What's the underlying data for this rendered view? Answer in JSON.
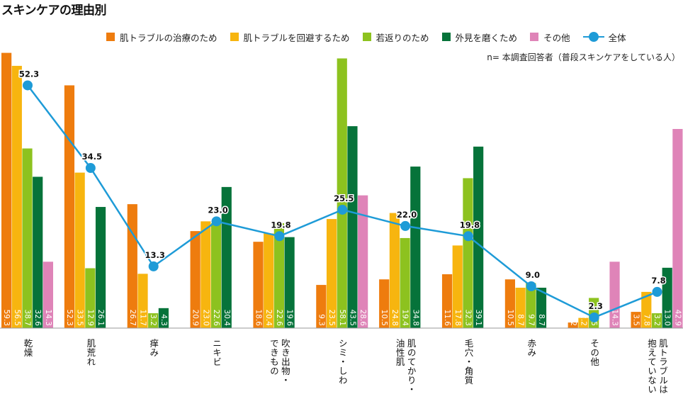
{
  "title": "スキンケアの理由別",
  "note": "n= 本調査回答者（普段スキンケアをしている人）",
  "chart_data": {
    "type": "bar",
    "title": "スキンケアの理由別",
    "categories": [
      [
        "乾燥"
      ],
      [
        "肌荒れ"
      ],
      [
        "痒み"
      ],
      [
        "ニキビ"
      ],
      [
        "吹き出物・",
        "できもの"
      ],
      [
        "シミ・しわ"
      ],
      [
        "肌のてかり・",
        "油性肌"
      ],
      [
        "毛穴・角質"
      ],
      [
        "赤み"
      ],
      [
        "その他"
      ],
      [
        "肌トラブルは",
        "抱えていない"
      ]
    ],
    "series": [
      {
        "name": "肌トラブルの治療のため",
        "color": "#ee7c0e",
        "values": [
          59.3,
          52.3,
          26.7,
          20.9,
          18.6,
          9.3,
          10.5,
          11.6,
          10.5,
          1.2,
          3.5
        ]
      },
      {
        "name": "肌トラブルを回避するため",
        "color": "#f7b50f",
        "values": [
          56.5,
          33.5,
          11.7,
          23.0,
          20.4,
          23.5,
          24.8,
          17.8,
          8.7,
          2.2,
          7.8
        ]
      },
      {
        "name": "若返りのため",
        "color": "#8dc21f",
        "values": [
          38.7,
          12.9,
          3.2,
          22.6,
          22.6,
          58.1,
          19.4,
          32.3,
          9.7,
          6.5,
          3.2
        ]
      },
      {
        "name": "外見を磨くため",
        "color": "#06733a",
        "values": [
          32.6,
          26.1,
          4.3,
          30.4,
          19.6,
          43.5,
          34.8,
          39.1,
          8.7,
          0,
          13.0
        ]
      },
      {
        "name": "その他",
        "color": "#df84b8",
        "values": [
          14.3,
          0,
          0,
          0,
          0,
          28.6,
          0,
          0,
          0,
          14.3,
          42.9
        ]
      }
    ],
    "line_series": {
      "name": "全体",
      "color": "#1e9bd7",
      "values": [
        52.3,
        34.5,
        13.3,
        23.0,
        19.8,
        25.5,
        22.0,
        19.8,
        9.0,
        2.3,
        7.8
      ]
    },
    "ylim": [
      0,
      60
    ]
  }
}
